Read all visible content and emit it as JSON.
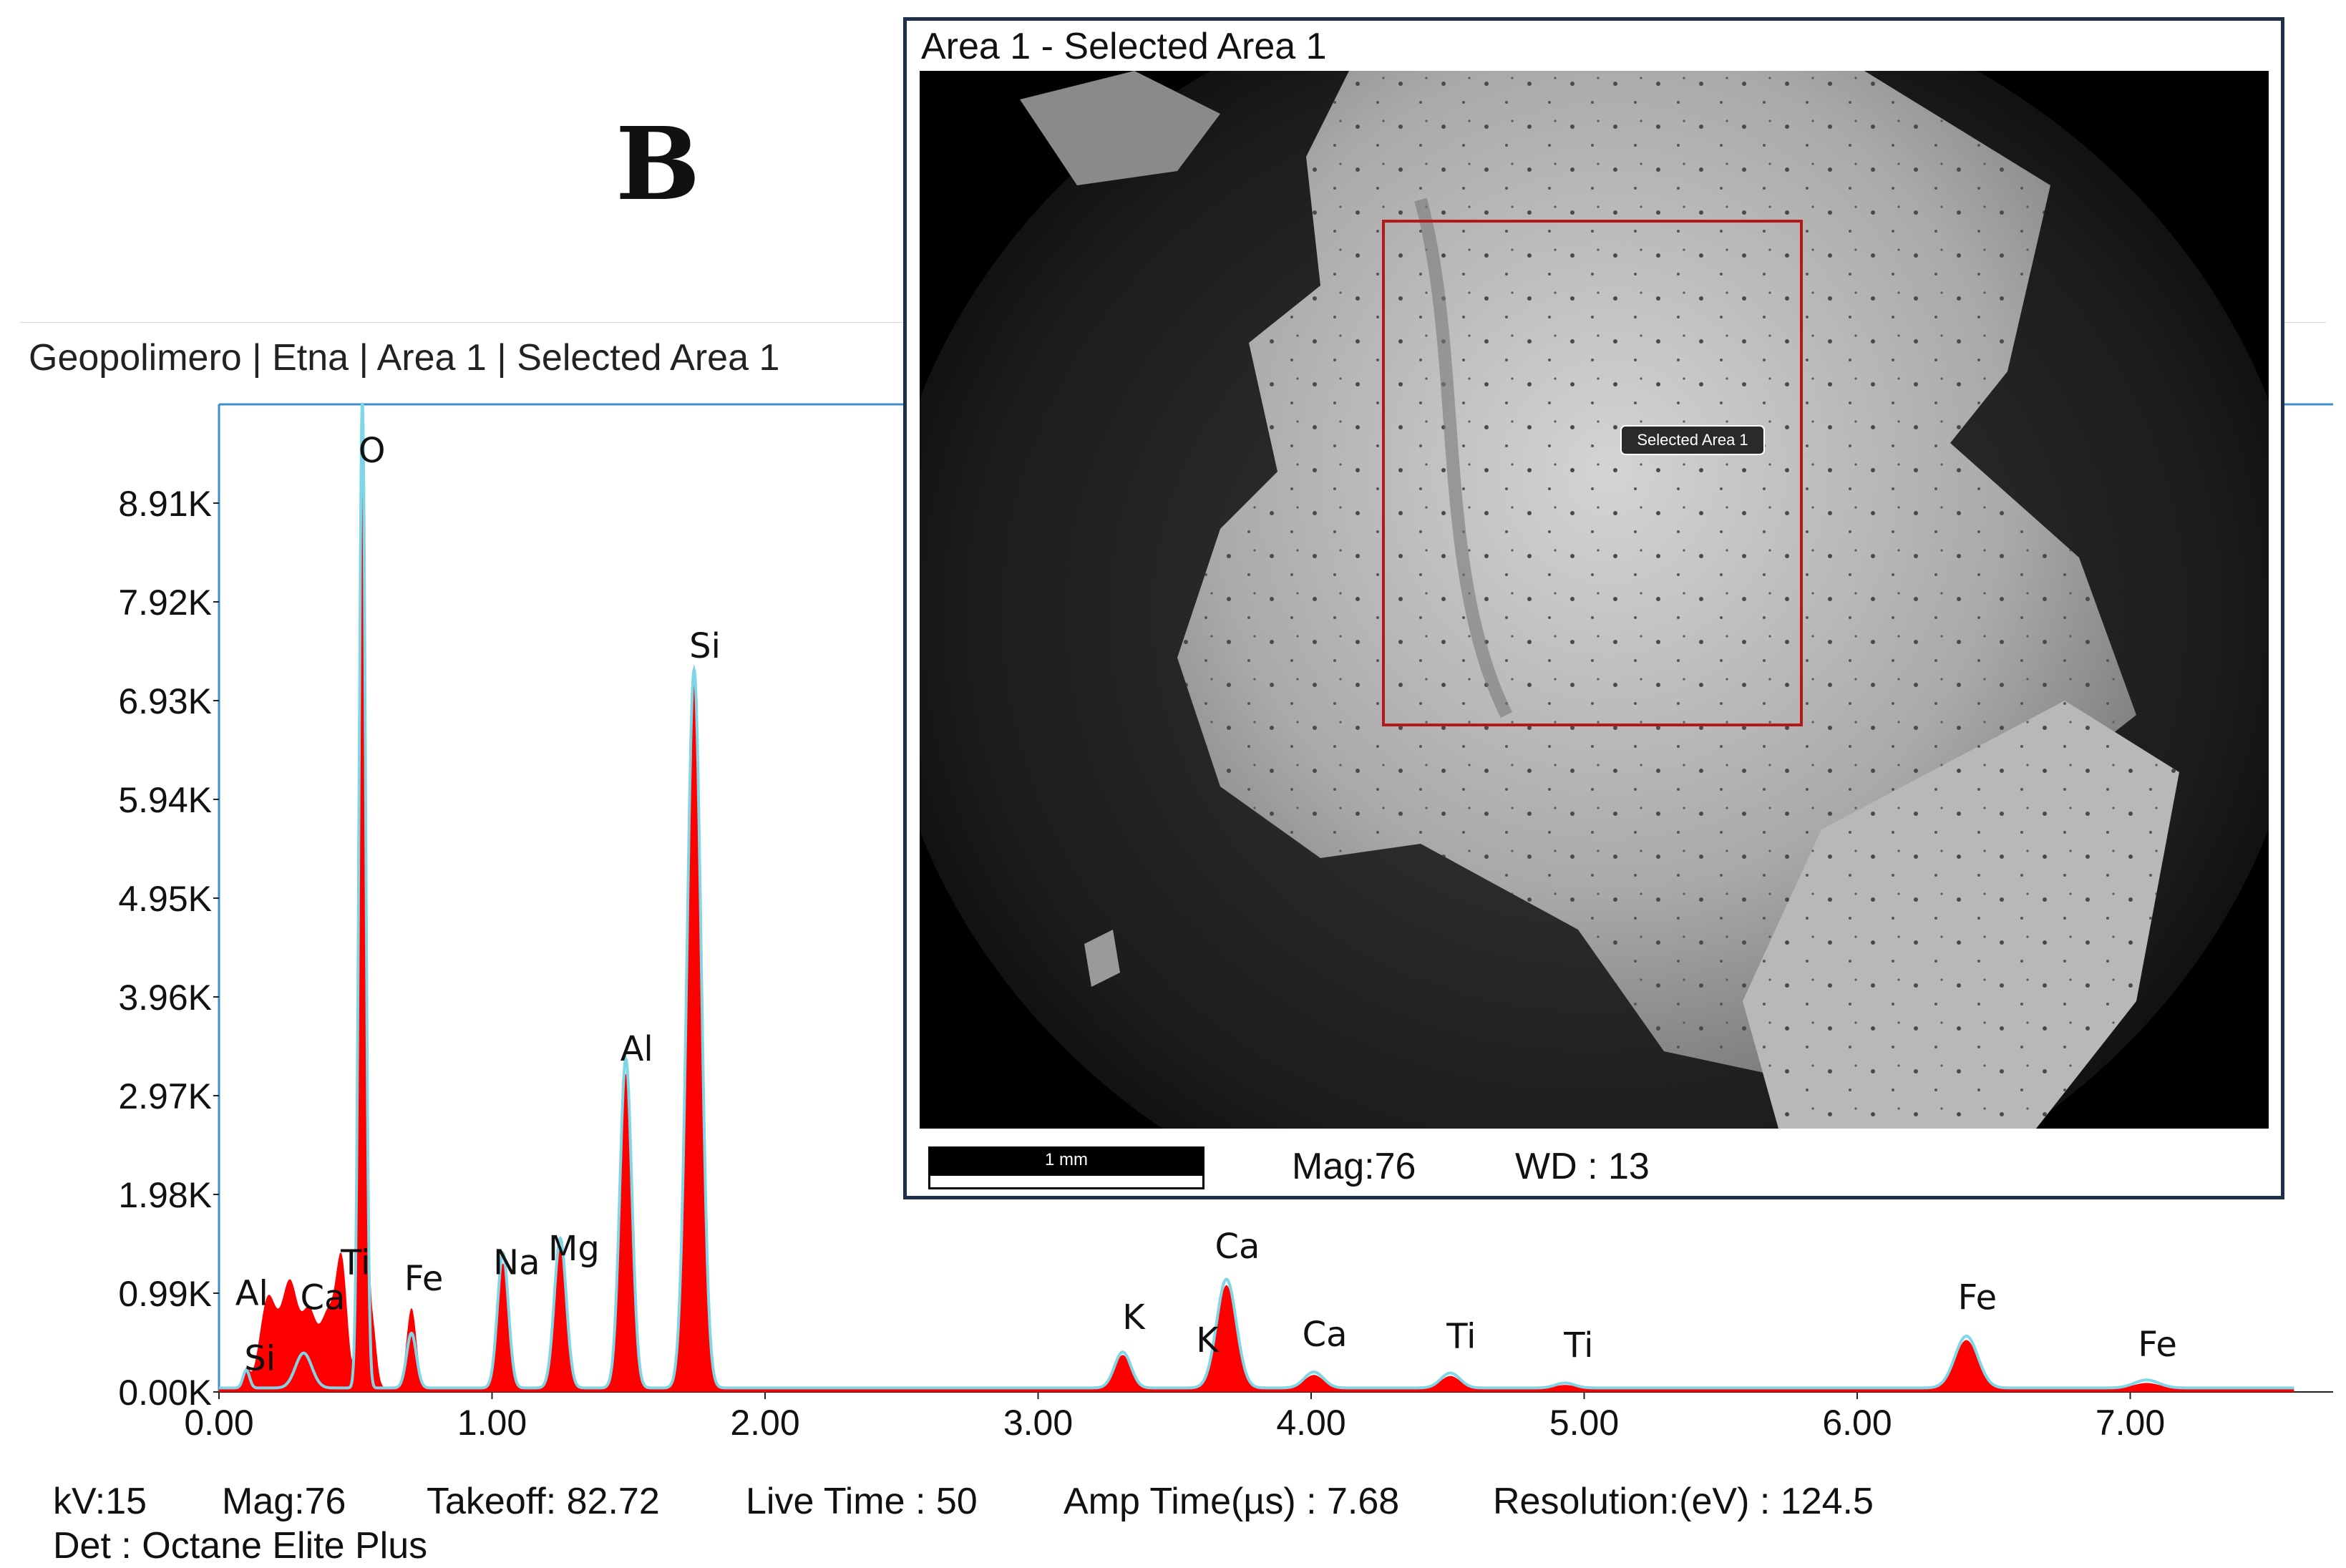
{
  "panel_letter": "B",
  "chart_title": "Geopolimero | Etna | Area 1 | Selected Area 1",
  "status": {
    "kv": "kV:15",
    "mag": "Mag:76",
    "takeoff": "Takeoff: 82.72",
    "live_time": "Live Time : 50",
    "amp_time": "Amp Time(µs) : 7.68",
    "resolution": "Resolution:(eV) : 124.5",
    "detector": "Det : Octane Elite Plus"
  },
  "inset": {
    "title": "Area 1 - Selected Area 1",
    "selection_label": "Selected Area 1",
    "scale_label": "1 mm",
    "mag": "Mag:76",
    "wd": "WD : 13"
  },
  "colors": {
    "spectrum_fill": "#ff0000",
    "overlay_line": "#7fd6e6",
    "axis_line": "#3c8fc8",
    "selection_box": "#b41818",
    "inset_border": "#1f2f4a"
  },
  "chart_data": {
    "type": "area",
    "xlabel": "",
    "ylabel": "",
    "xlim": [
      0,
      7.6
    ],
    "ylim": [
      0,
      9900
    ],
    "x_ticks": [
      "0.00",
      "1.00",
      "2.00",
      "3.00",
      "4.00",
      "5.00",
      "6.00",
      "7.00"
    ],
    "y_ticks": [
      "0.00K",
      "0.99K",
      "1.98K",
      "2.97K",
      "3.96K",
      "4.95K",
      "5.94K",
      "6.93K",
      "7.92K",
      "8.91K"
    ],
    "x_tick_values": [
      0,
      1,
      2,
      3,
      4,
      5,
      6,
      7
    ],
    "y_tick_values": [
      0,
      990,
      1980,
      2970,
      3960,
      4950,
      5940,
      6930,
      7920,
      8910
    ],
    "peaks": [
      {
        "x": 0.1,
        "y": 180,
        "w": 0.012
      },
      {
        "x": 0.18,
        "y": 900,
        "w": 0.03
      },
      {
        "x": 0.26,
        "y": 1050,
        "w": 0.03
      },
      {
        "x": 0.33,
        "y": 700,
        "w": 0.025
      },
      {
        "x": 0.4,
        "y": 750,
        "w": 0.03
      },
      {
        "x": 0.45,
        "y": 1150,
        "w": 0.02
      },
      {
        "x": 0.525,
        "y": 9900,
        "w": 0.012
      },
      {
        "x": 0.56,
        "y": 700,
        "w": 0.015
      },
      {
        "x": 0.705,
        "y": 800,
        "w": 0.018
      },
      {
        "x": 1.04,
        "y": 1250,
        "w": 0.02
      },
      {
        "x": 1.25,
        "y": 1400,
        "w": 0.022
      },
      {
        "x": 1.49,
        "y": 3150,
        "w": 0.022
      },
      {
        "x": 1.74,
        "y": 7100,
        "w": 0.026
      },
      {
        "x": 3.31,
        "y": 330,
        "w": 0.03
      },
      {
        "x": 3.69,
        "y": 1030,
        "w": 0.036
      },
      {
        "x": 4.01,
        "y": 130,
        "w": 0.035
      },
      {
        "x": 4.51,
        "y": 120,
        "w": 0.035
      },
      {
        "x": 4.93,
        "y": 30,
        "w": 0.035
      },
      {
        "x": 6.4,
        "y": 480,
        "w": 0.042
      },
      {
        "x": 7.06,
        "y": 50,
        "w": 0.045
      }
    ],
    "overlay_peaks": [
      {
        "x": 0.1,
        "y": 180,
        "w": 0.012
      },
      {
        "x": 0.31,
        "y": 350,
        "w": 0.03
      },
      {
        "x": 0.525,
        "y": 9900,
        "w": 0.012
      },
      {
        "x": 0.705,
        "y": 550,
        "w": 0.018
      },
      {
        "x": 1.04,
        "y": 1350,
        "w": 0.02
      },
      {
        "x": 1.25,
        "y": 1500,
        "w": 0.022
      },
      {
        "x": 1.49,
        "y": 3300,
        "w": 0.022
      },
      {
        "x": 1.74,
        "y": 7200,
        "w": 0.026
      },
      {
        "x": 3.31,
        "y": 360,
        "w": 0.03
      },
      {
        "x": 3.69,
        "y": 1090,
        "w": 0.036
      },
      {
        "x": 4.01,
        "y": 160,
        "w": 0.035
      },
      {
        "x": 4.51,
        "y": 150,
        "w": 0.035
      },
      {
        "x": 4.93,
        "y": 50,
        "w": 0.035
      },
      {
        "x": 6.4,
        "y": 520,
        "w": 0.042
      },
      {
        "x": 7.06,
        "y": 80,
        "w": 0.045
      }
    ],
    "baseline": 40,
    "annotations": [
      {
        "label": "Si",
        "x": 0.15,
        "y": 220
      },
      {
        "label": "Al",
        "x": 0.12,
        "y": 870
      },
      {
        "label": "Ca",
        "x": 0.38,
        "y": 830
      },
      {
        "label": "Ti",
        "x": 0.5,
        "y": 1180
      },
      {
        "label": "O",
        "x": 0.56,
        "y": 9320
      },
      {
        "label": "Fe",
        "x": 0.75,
        "y": 1020
      },
      {
        "label": "Na",
        "x": 1.09,
        "y": 1180
      },
      {
        "label": "Mg",
        "x": 1.3,
        "y": 1320
      },
      {
        "label": "Al",
        "x": 1.53,
        "y": 3320
      },
      {
        "label": "Si",
        "x": 1.78,
        "y": 7360
      },
      {
        "label": "K",
        "x": 3.35,
        "y": 630
      },
      {
        "label": "K",
        "x": 3.62,
        "y": 400
      },
      {
        "label": "Ca",
        "x": 3.73,
        "y": 1340
      },
      {
        "label": "Ca",
        "x": 4.05,
        "y": 460
      },
      {
        "label": "Ti",
        "x": 4.55,
        "y": 440
      },
      {
        "label": "Ti",
        "x": 4.98,
        "y": 350
      },
      {
        "label": "Fe",
        "x": 6.44,
        "y": 830
      },
      {
        "label": "Fe",
        "x": 7.1,
        "y": 360
      }
    ]
  }
}
